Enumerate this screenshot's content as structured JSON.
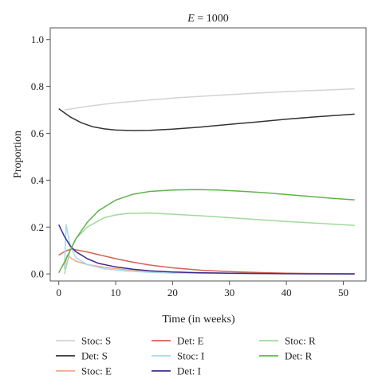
{
  "chart_data": {
    "type": "line",
    "title_var": "E",
    "title_rest": " = 1000",
    "xlabel": "Time (in weeks)",
    "ylabel": "Proportion",
    "xlim": [
      -1.5,
      54
    ],
    "ylim": [
      -0.03,
      1.05
    ],
    "xticks": [
      0,
      10,
      20,
      30,
      40,
      50
    ],
    "yticks": [
      0.0,
      0.2,
      0.4,
      0.6,
      0.8,
      1.0
    ],
    "xtick_labels": [
      "0",
      "10",
      "20",
      "30",
      "40",
      "50"
    ],
    "ytick_labels": [
      "0.0",
      "0.2",
      "0.4",
      "0.6",
      "0.8",
      "1.0"
    ],
    "grid": false,
    "legend_position": "bottom",
    "series": [
      {
        "name": "Stoc: S",
        "color": "#d3d3d3",
        "x": [
          1,
          5,
          10,
          15,
          20,
          25,
          30,
          35,
          40,
          45,
          52
        ],
        "y": [
          0.7,
          0.715,
          0.73,
          0.74,
          0.75,
          0.758,
          0.765,
          0.772,
          0.778,
          0.783,
          0.79
        ]
      },
      {
        "name": "Det: S",
        "color": "#333333",
        "x": [
          0,
          2,
          4,
          6,
          8,
          10,
          13,
          16,
          20,
          25,
          30,
          35,
          40,
          45,
          52
        ],
        "y": [
          0.705,
          0.67,
          0.645,
          0.628,
          0.619,
          0.614,
          0.612,
          0.613,
          0.618,
          0.627,
          0.638,
          0.649,
          0.66,
          0.67,
          0.682
        ]
      },
      {
        "name": "Stoc: E",
        "color": "#f4a582",
        "x": [
          1,
          1.5,
          2,
          3,
          5,
          8,
          12,
          16,
          20,
          25,
          30,
          40,
          52
        ],
        "y": [
          0.03,
          0.08,
          0.07,
          0.055,
          0.04,
          0.028,
          0.018,
          0.012,
          0.008,
          0.005,
          0.003,
          0.001,
          0.0
        ]
      },
      {
        "name": "Det: E",
        "color": "#d6604d",
        "x": [
          0,
          1,
          2,
          3,
          5,
          7,
          10,
          13,
          16,
          20,
          25,
          30,
          35,
          40,
          45,
          52
        ],
        "y": [
          0.08,
          0.095,
          0.105,
          0.103,
          0.094,
          0.082,
          0.065,
          0.05,
          0.038,
          0.026,
          0.016,
          0.01,
          0.006,
          0.003,
          0.002,
          0.001
        ]
      },
      {
        "name": "Stoc: I",
        "color": "#a6d8f0",
        "x": [
          1,
          1.3,
          2,
          3,
          5,
          8,
          12,
          16,
          20,
          30,
          40,
          52
        ],
        "y": [
          0.02,
          0.21,
          0.12,
          0.07,
          0.04,
          0.022,
          0.012,
          0.007,
          0.004,
          0.002,
          0.001,
          0.0
        ]
      },
      {
        "name": "Det: I",
        "color": "#3f2a8f",
        "x": [
          0,
          1,
          2,
          3,
          5,
          7,
          10,
          13,
          16,
          20,
          25,
          30,
          35,
          40,
          52
        ],
        "y": [
          0.21,
          0.16,
          0.12,
          0.095,
          0.065,
          0.045,
          0.03,
          0.02,
          0.013,
          0.008,
          0.005,
          0.003,
          0.002,
          0.001,
          0.0
        ]
      },
      {
        "name": "Stoc: R",
        "color": "#a1d99b",
        "x": [
          1,
          1.5,
          2,
          3,
          5,
          8,
          10,
          12,
          16,
          20,
          25,
          30,
          35,
          40,
          45,
          52
        ],
        "y": [
          0.0,
          0.05,
          0.1,
          0.15,
          0.2,
          0.24,
          0.252,
          0.258,
          0.26,
          0.255,
          0.248,
          0.24,
          0.232,
          0.224,
          0.217,
          0.207
        ]
      },
      {
        "name": "Det: R",
        "color": "#5fb34a",
        "x": [
          0,
          1,
          2,
          3,
          5,
          7,
          10,
          13,
          16,
          20,
          24,
          28,
          32,
          36,
          40,
          44,
          48,
          52
        ],
        "y": [
          0.005,
          0.05,
          0.1,
          0.15,
          0.22,
          0.27,
          0.315,
          0.34,
          0.352,
          0.358,
          0.36,
          0.358,
          0.353,
          0.347,
          0.339,
          0.331,
          0.323,
          0.316
        ]
      }
    ]
  }
}
